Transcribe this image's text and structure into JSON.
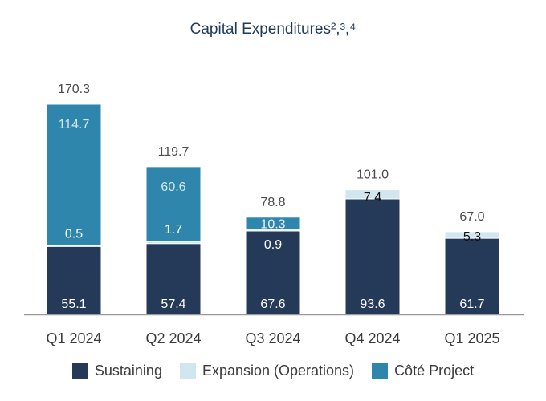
{
  "chart_data": {
    "type": "bar",
    "stacked": true,
    "title": "Capital Expenditures²,³,⁴",
    "categories": [
      "Q1 2024",
      "Q2 2024",
      "Q3 2024",
      "Q4 2024",
      "Q1 2025"
    ],
    "series": [
      {
        "name": "Sustaining",
        "color": "#253a59",
        "values": [
          55.1,
          57.4,
          67.6,
          93.6,
          61.7
        ]
      },
      {
        "name": "Expansion (Operations)",
        "color": "#d2e6f0",
        "values": [
          0.5,
          1.7,
          0.9,
          7.4,
          5.3
        ]
      },
      {
        "name": "Côté Project",
        "color": "#2e86ad",
        "values": [
          114.7,
          60.6,
          10.3,
          0,
          0
        ]
      }
    ],
    "totals": [
      170.3,
      119.7,
      78.8,
      101.0,
      67.0
    ],
    "total_labels": [
      "170.3",
      "119.7",
      "78.8",
      "101.0",
      "67.0"
    ],
    "value_labels": [
      [
        "55.1",
        "57.4",
        "67.6",
        "93.6",
        "61.7"
      ],
      [
        "0.5",
        "1.7",
        "0.9",
        "7.4",
        "5.3"
      ],
      [
        "114.7",
        "60.6",
        "10.3",
        "",
        ""
      ]
    ],
    "ylim": [
      0,
      180
    ],
    "grid": false,
    "legend_position": "bottom"
  }
}
